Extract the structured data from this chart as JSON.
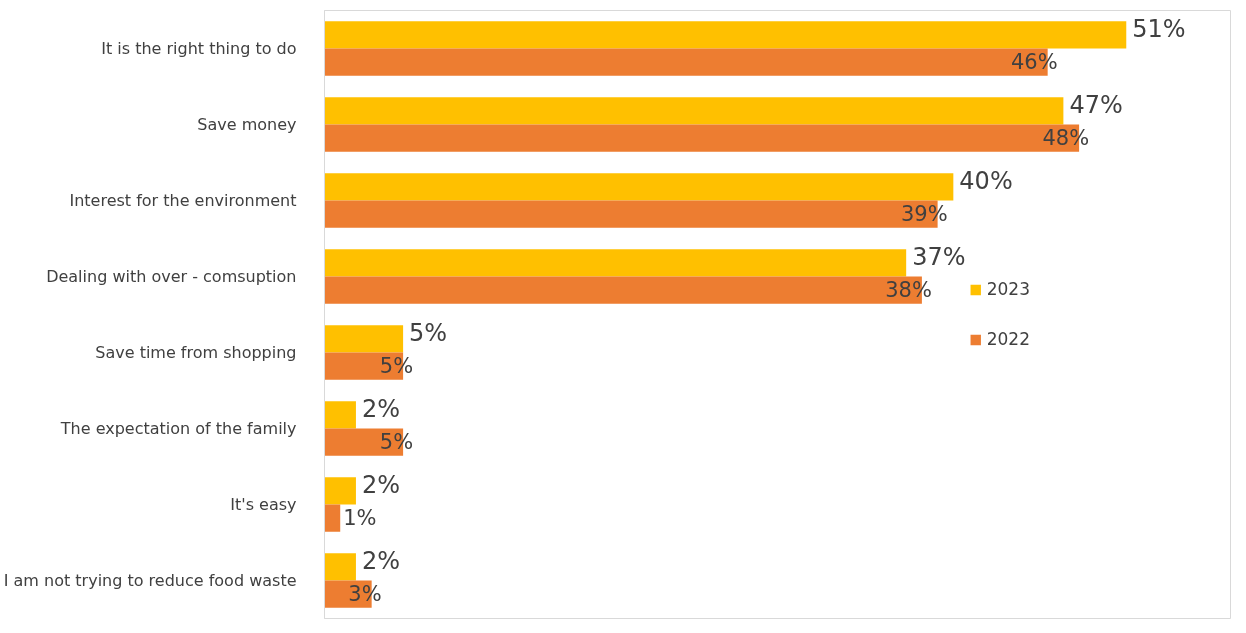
{
  "chart_data": {
    "type": "bar",
    "orientation": "horizontal",
    "legend": "right",
    "categories": [
      "It is the right thing to do",
      "Save money",
      "Interest for the environment",
      "Dealing with over - comsuption",
      "Save time from shopping",
      "The expectation of the family",
      "It's easy",
      "I am not trying to reduce food waste"
    ],
    "series": [
      {
        "name": "2023",
        "color": "#ffc000",
        "values": [
          51,
          47,
          40,
          37,
          5,
          2,
          2,
          2
        ],
        "value_labels": [
          "51%",
          "47%",
          "40%",
          "37%",
          "5%",
          "2%",
          "2%",
          "2%"
        ]
      },
      {
        "name": "2022",
        "color": "#ed7d31",
        "values": [
          46,
          48,
          39,
          38,
          5,
          5,
          1,
          3
        ],
        "value_labels": [
          "46%",
          "48%",
          "39%",
          "38%",
          "5%",
          "5%",
          "1%",
          "3%"
        ]
      }
    ]
  }
}
